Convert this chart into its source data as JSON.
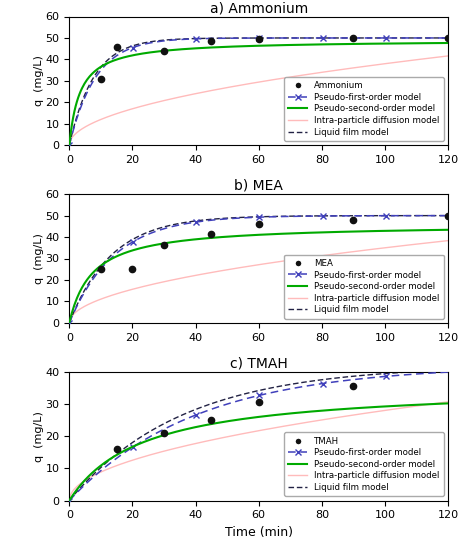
{
  "panels": [
    {
      "title": "a) Ammonium",
      "ylabel": "q  (mg/L)",
      "ylim": [
        0,
        60
      ],
      "yticks": [
        0,
        10,
        20,
        30,
        40,
        50,
        60
      ],
      "data_points": {
        "x": [
          10,
          15,
          30,
          45,
          60,
          90,
          120
        ],
        "y": [
          31,
          46,
          44,
          48.5,
          49.5,
          50,
          50
        ]
      },
      "pfo_params": {
        "qe": 50.0,
        "k1": 0.12
      },
      "pso_params": {
        "qe": 49.0,
        "k2": 0.006
      },
      "ipd_params": {
        "ki": 3.8,
        "C": 0.0
      },
      "lf_params": {
        "qe": 50.0,
        "k1": 0.13
      },
      "legend_label": "Ammonium"
    },
    {
      "title": "b) MEA",
      "ylabel": "q  (mg/L)",
      "ylim": [
        0,
        60
      ],
      "yticks": [
        0,
        10,
        20,
        30,
        40,
        50,
        60
      ],
      "data_points": {
        "x": [
          10,
          20,
          30,
          45,
          60,
          90,
          120
        ],
        "y": [
          25,
          25,
          36.5,
          41.5,
          46,
          48,
          50
        ]
      },
      "pfo_params": {
        "qe": 50.0,
        "k1": 0.07
      },
      "pso_params": {
        "qe": 46.0,
        "k2": 0.003
      },
      "ipd_params": {
        "ki": 3.5,
        "C": 0.0
      },
      "lf_params": {
        "qe": 50.0,
        "k1": 0.075
      },
      "legend_label": "MEA"
    },
    {
      "title": "c) TMAH",
      "ylabel": "q  (mg/L)",
      "ylim": [
        0,
        40
      ],
      "yticks": [
        0,
        10,
        20,
        30,
        40
      ],
      "data_points": {
        "x": [
          15,
          30,
          45,
          60,
          90
        ],
        "y": [
          16,
          21,
          25,
          30.5,
          35.5
        ]
      },
      "pfo_params": {
        "qe": 42.0,
        "k1": 0.025
      },
      "pso_params": {
        "qe": 36.0,
        "k2": 0.0012
      },
      "ipd_params": {
        "ki": 2.8,
        "C": 0.0
      },
      "lf_params": {
        "qe": 42.0,
        "k1": 0.028
      },
      "legend_label": "TMAH"
    }
  ],
  "xlim": [
    0,
    120
  ],
  "xticks": [
    0,
    20,
    40,
    60,
    80,
    100,
    120
  ],
  "xlabel": "Time (min)",
  "color_pfo": "#4040bb",
  "color_pso": "#00aa00",
  "color_ipd": "#ffbbbb",
  "color_lf": "#222244",
  "color_data": "#111111"
}
